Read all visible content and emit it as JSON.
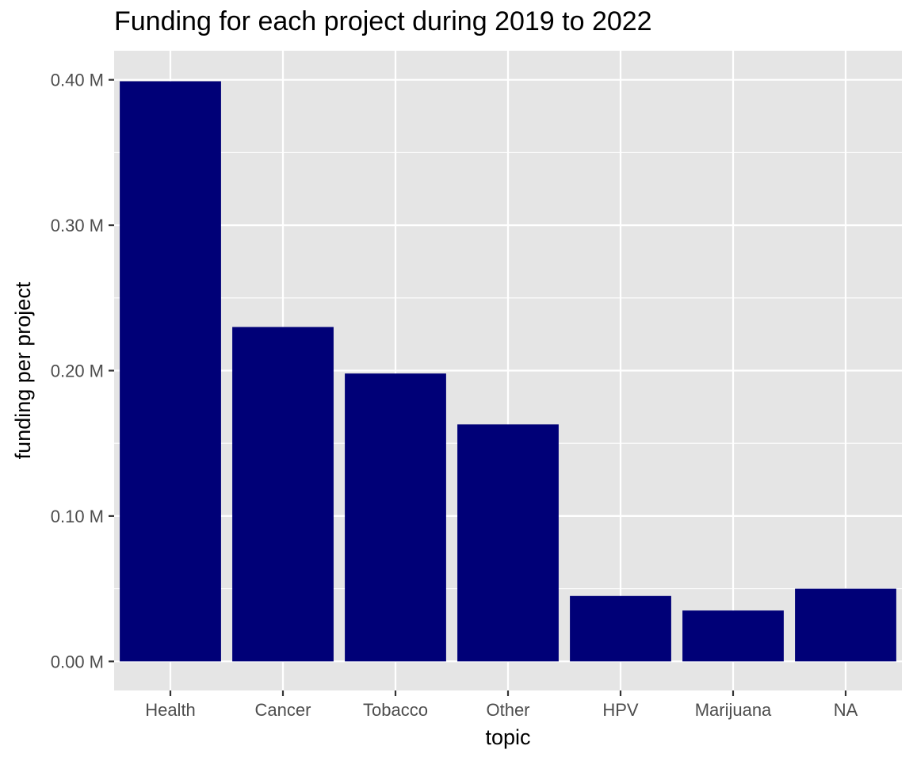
{
  "chart_data": {
    "type": "bar",
    "title": "Funding for each project during 2019 to 2022",
    "xlabel": "topic",
    "ylabel": "funding per project",
    "categories": [
      "Health",
      "Cancer",
      "Tobacco",
      "Other",
      "HPV",
      "Marijuana",
      "NA"
    ],
    "values": [
      0.399,
      0.23,
      0.198,
      0.163,
      0.045,
      0.035,
      0.05
    ],
    "value_unit": "M",
    "ylim": [
      -0.02,
      0.42
    ],
    "yticks": [
      0.0,
      0.1,
      0.2,
      0.3,
      0.4
    ],
    "ytick_labels": [
      "0.00 M",
      "0.10 M",
      "0.20 M",
      "0.30 M",
      "0.40 M"
    ],
    "grid": true,
    "legend": "none",
    "colors": {
      "bar": "#000077",
      "panel_background": "#e5e5e5",
      "grid": "#ffffff",
      "axis_text": "#4d4d4d",
      "axis_title": "#000000"
    }
  }
}
